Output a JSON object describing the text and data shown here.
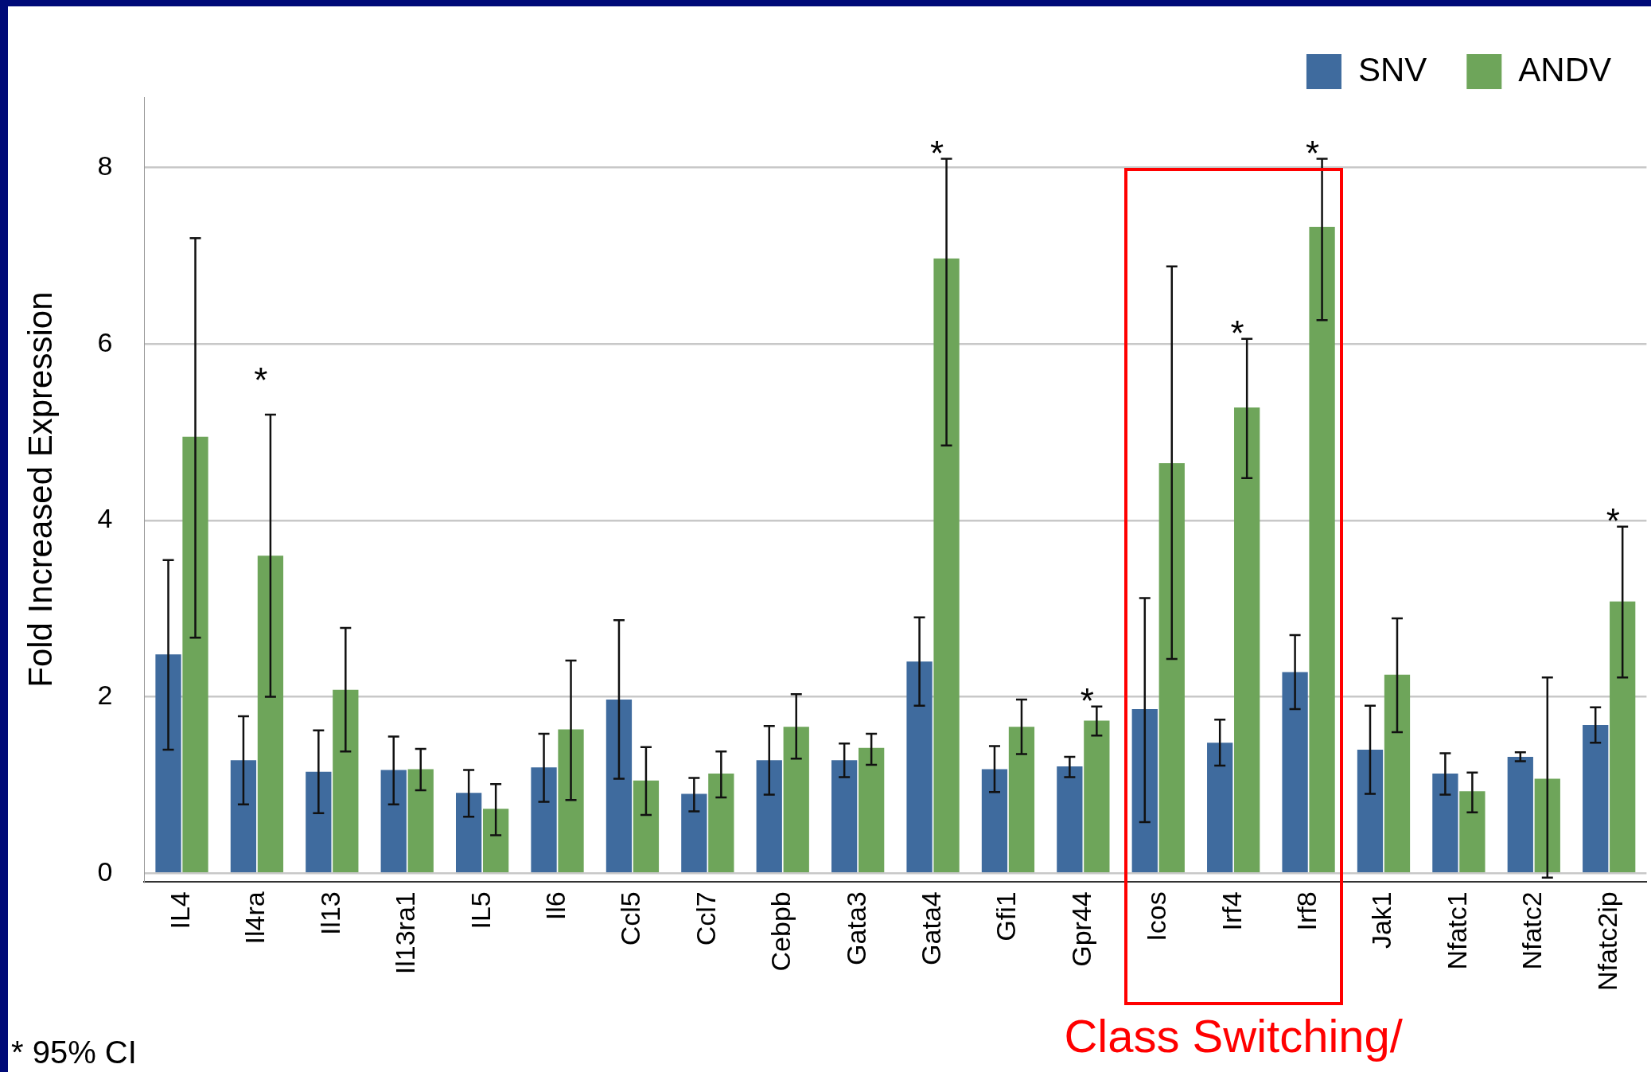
{
  "chart_data": {
    "type": "bar",
    "ylabel": "Fold Increased Expression",
    "categories": [
      "IL4",
      "Il4ra",
      "Il13",
      "Il13ra1",
      "IL5",
      "Il6",
      "Ccl5",
      "Ccl7",
      "Cebpb",
      "Gata3",
      "Gata4",
      "Gfi1",
      "Gpr44",
      "Icos",
      "Irf4",
      "Irf8",
      "Jak1",
      "Nfatc1",
      "Nfatc2",
      "Nfatc2ip"
    ],
    "series": [
      {
        "name": "SNV",
        "color": "#3f6b9e",
        "values": [
          2.48,
          1.28,
          1.15,
          1.17,
          0.91,
          1.2,
          1.97,
          0.9,
          1.28,
          1.28,
          2.4,
          1.18,
          1.21,
          1.86,
          1.48,
          2.28,
          1.4,
          1.13,
          1.32,
          1.68
        ],
        "errors": [
          [
            1.4,
            3.55
          ],
          [
            0.78,
            1.78
          ],
          [
            0.68,
            1.62
          ],
          [
            0.78,
            1.55
          ],
          [
            0.64,
            1.17
          ],
          [
            0.81,
            1.58
          ],
          [
            1.07,
            2.87
          ],
          [
            0.7,
            1.08
          ],
          [
            0.89,
            1.67
          ],
          [
            1.09,
            1.47
          ],
          [
            1.9,
            2.9
          ],
          [
            0.92,
            1.44
          ],
          [
            1.09,
            1.32
          ],
          [
            0.58,
            3.12
          ],
          [
            1.22,
            1.74
          ],
          [
            1.86,
            2.7
          ],
          [
            0.9,
            1.9
          ],
          [
            0.89,
            1.36
          ],
          [
            1.27,
            1.37
          ],
          [
            1.48,
            1.88
          ]
        ]
      },
      {
        "name": "ANDV",
        "color": "#6ea55a",
        "values": [
          4.95,
          3.6,
          2.08,
          1.18,
          0.73,
          1.63,
          1.05,
          1.13,
          1.66,
          1.42,
          6.97,
          1.66,
          1.73,
          4.65,
          5.28,
          7.33,
          2.25,
          0.93,
          1.07,
          3.08
        ],
        "errors": [
          [
            2.67,
            7.2
          ],
          [
            2.0,
            5.2
          ],
          [
            1.38,
            2.78
          ],
          [
            0.94,
            1.41
          ],
          [
            0.43,
            1.01
          ],
          [
            0.83,
            2.41
          ],
          [
            0.66,
            1.43
          ],
          [
            0.86,
            1.38
          ],
          [
            1.3,
            2.03
          ],
          [
            1.23,
            1.58
          ],
          [
            4.85,
            8.1
          ],
          [
            1.35,
            1.97
          ],
          [
            1.56,
            1.89
          ],
          [
            2.43,
            6.88
          ],
          [
            4.48,
            6.06
          ],
          [
            6.27,
            8.1
          ],
          [
            1.6,
            2.89
          ],
          [
            0.69,
            1.14
          ],
          [
            -0.05,
            2.22
          ],
          [
            2.22,
            3.93
          ]
        ]
      }
    ],
    "ylim": [
      -0.1,
      8.8
    ],
    "yticks": [
      0,
      2,
      4,
      6,
      8
    ],
    "grid": "y",
    "legend": "top right",
    "annotations": [
      {
        "text": "*",
        "x": "Gata4",
        "y": 6.97
      },
      {
        "text": "*",
        "x": "Gpr44",
        "y": 1.73
      },
      {
        "text": "*",
        "x": "Irf4",
        "y": 5.28
      },
      {
        "text": "*",
        "x": "Irf8",
        "y": 7.33
      },
      {
        "text": "*",
        "x": "Nfatc2ip",
        "y": 3.08
      },
      "*",
      "* 95% CI",
      "Class Switching/"
    ]
  }
}
